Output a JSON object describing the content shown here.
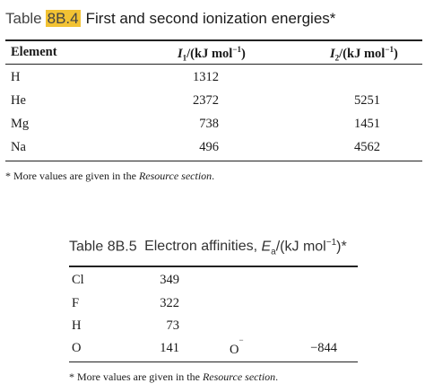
{
  "table1": {
    "label": "Table",
    "number": "8B.4",
    "title": "First and second ionization energies*",
    "headers": {
      "element": "Element",
      "i1_sym": "I",
      "i1_sub": "1",
      "i1_unit": "/(kJ mol",
      "i1_exp": "−1",
      "i1_close": ")",
      "i2_sym": "I",
      "i2_sub": "2",
      "i2_unit": "/(kJ mol",
      "i2_exp": "−1",
      "i2_close": ")"
    },
    "rows": [
      {
        "element": "H",
        "i1": "1312",
        "i2": ""
      },
      {
        "element": "He",
        "i1": "2372",
        "i2": "5251"
      },
      {
        "element": "Mg",
        "i1": "738",
        "i2": "1451"
      },
      {
        "element": "Na",
        "i1": "496",
        "i2": "4562"
      }
    ],
    "footnote_prefix": "* More values are given in the ",
    "footnote_link": "Resource section",
    "footnote_suffix": "."
  },
  "table2": {
    "label": "Table 8B.5",
    "title_text": "Electron affinities, ",
    "title_sym": "E",
    "title_sub": "a",
    "title_unit": "/(kJ mol",
    "title_exp": "−1",
    "title_close": ")*",
    "rows": [
      {
        "element": "Cl",
        "value": "349"
      },
      {
        "element": "F",
        "value": "322"
      },
      {
        "element": "H",
        "value": "73"
      },
      {
        "element": "O",
        "value": "141",
        "ion": "O",
        "ion_charge": "−",
        "ion_value": "−844"
      }
    ],
    "footnote_prefix": "* More values are given in the ",
    "footnote_link": "Resource section",
    "footnote_suffix": "."
  }
}
